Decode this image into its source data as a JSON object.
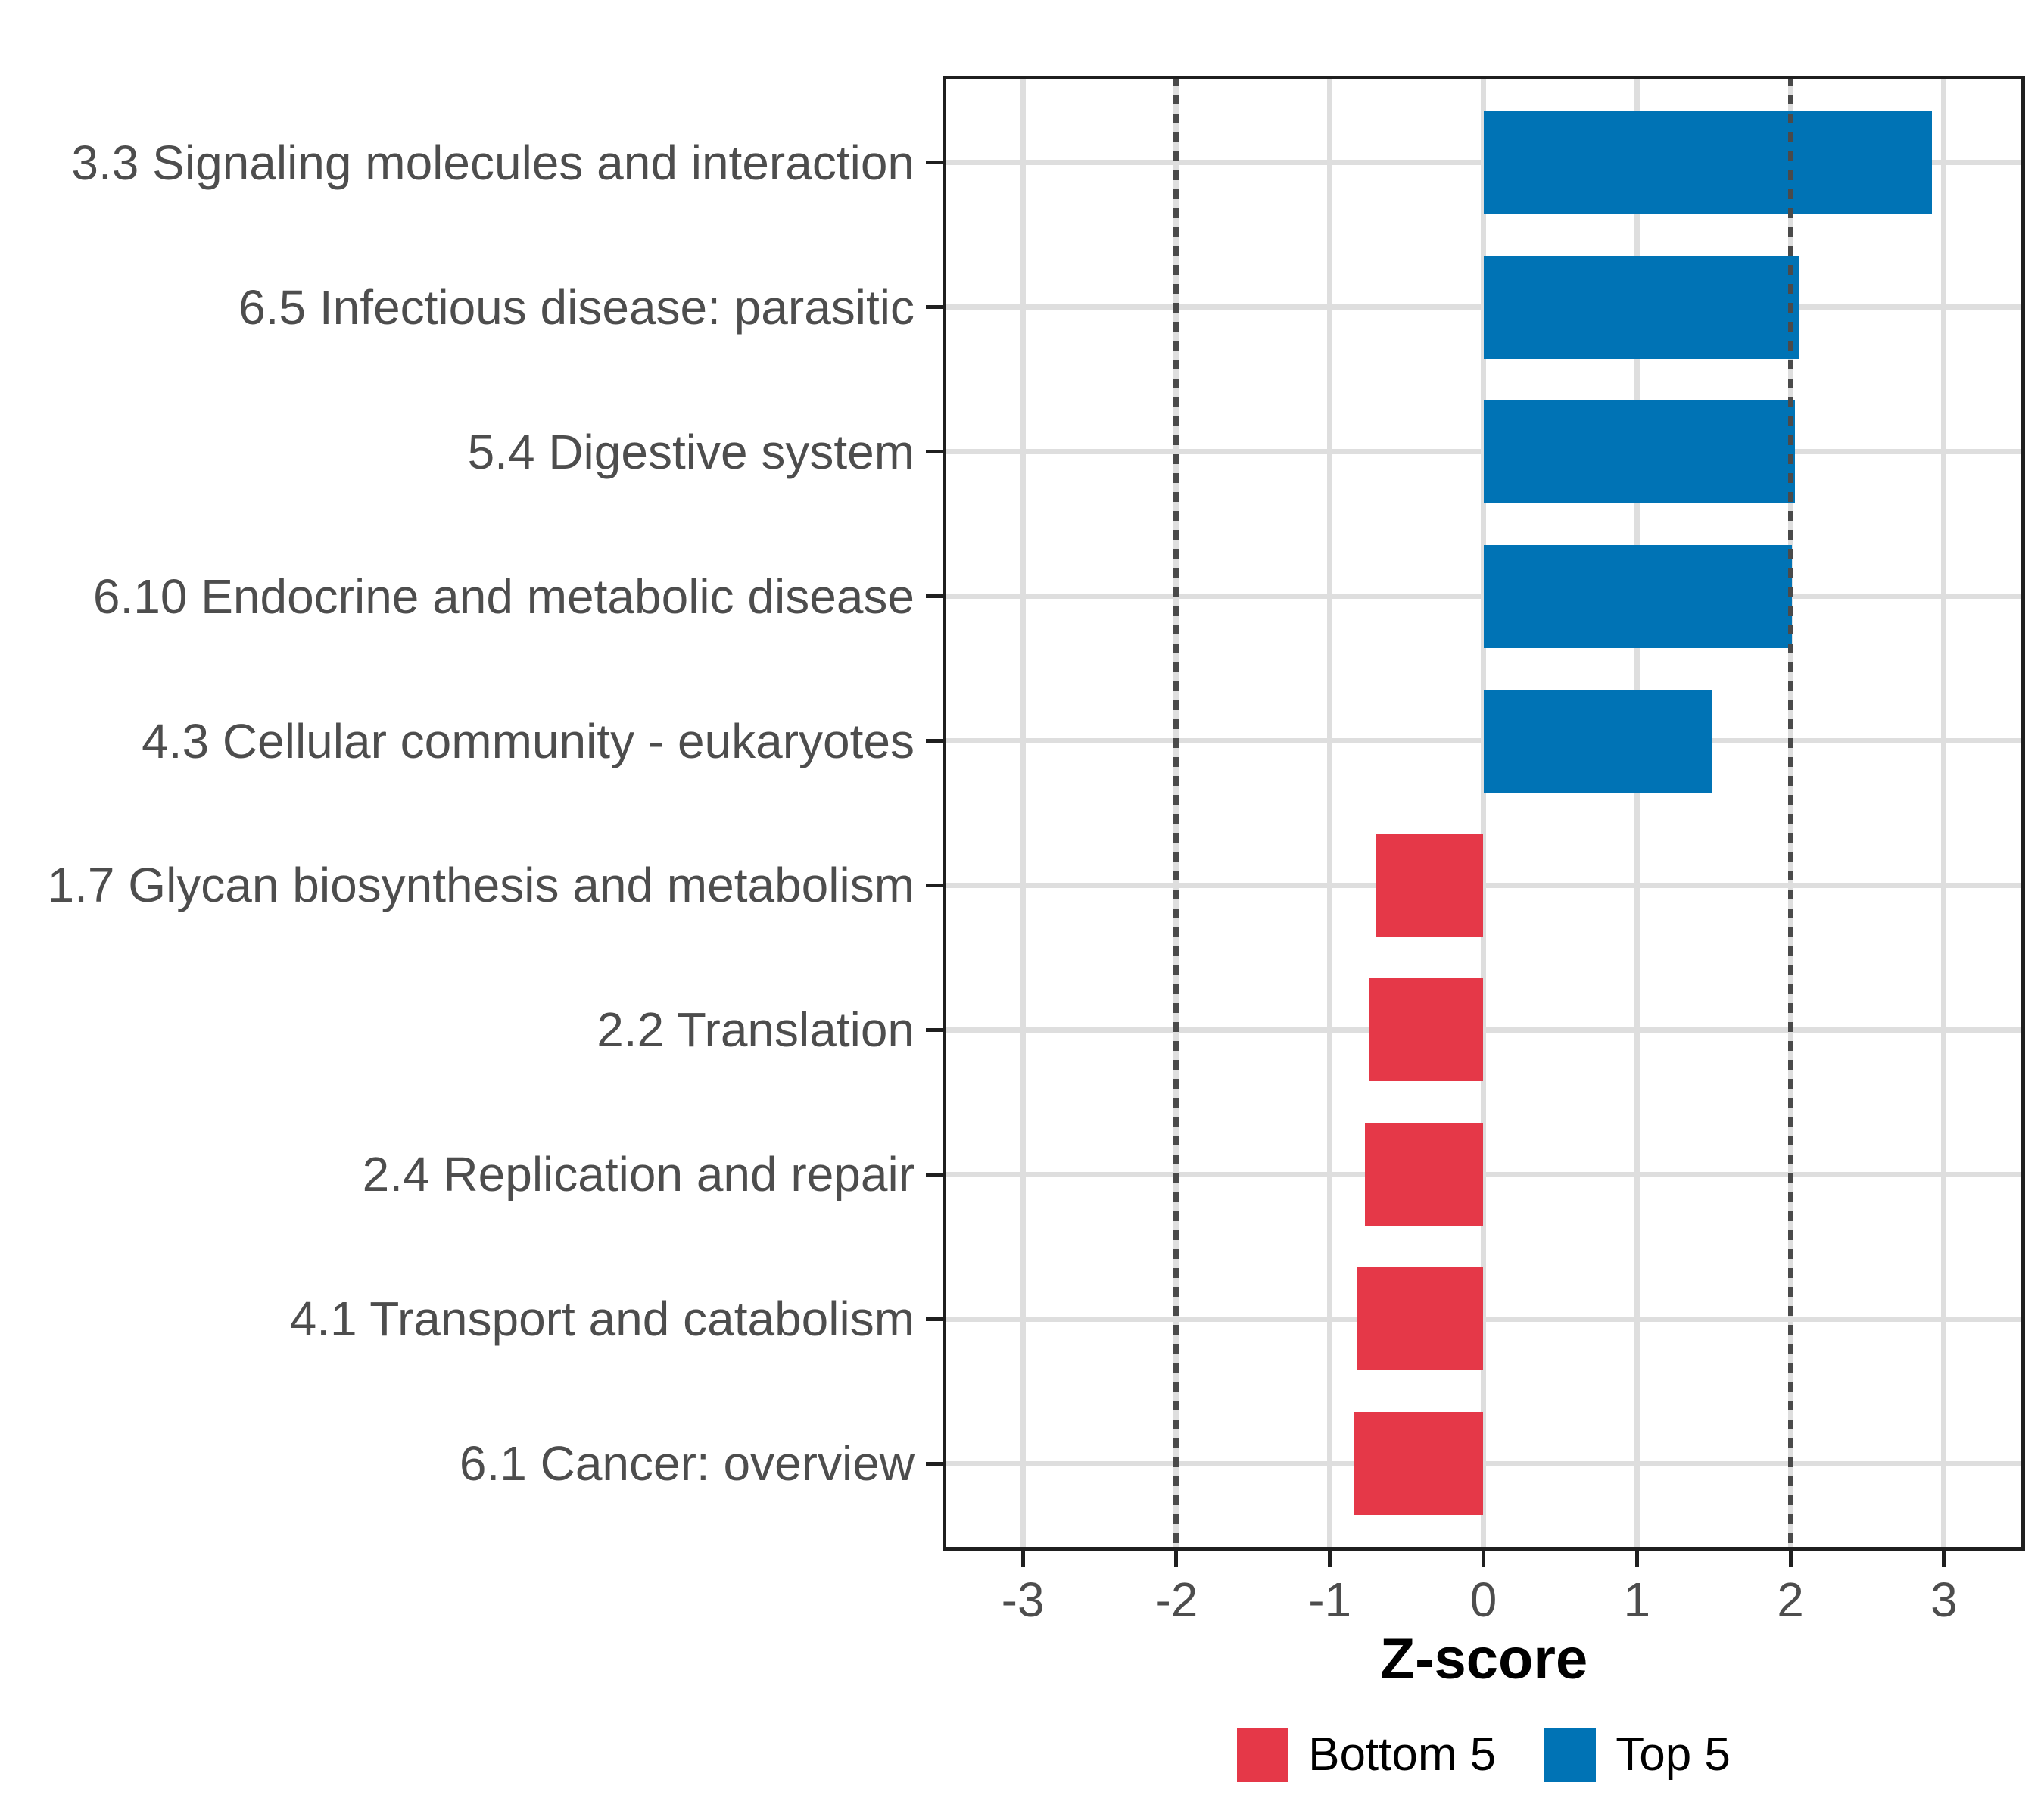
{
  "chart_data": {
    "type": "bar",
    "orientation": "horizontal",
    "title": "",
    "xlabel": "Z-score",
    "ylabel": "",
    "categories": [
      "3.3 Signaling molecules and interaction",
      "6.5 Infectious disease: parasitic",
      "5.4 Digestive system",
      "6.10 Endocrine and metabolic disease",
      "4.3 Cellular community - eukaryotes",
      "1.7 Glycan biosynthesis and metabolism",
      "2.2 Translation",
      "2.4 Replication and repair",
      "4.1 Transport and catabolism",
      "6.1 Cancer: overview"
    ],
    "values": [
      2.92,
      2.06,
      2.03,
      2.01,
      1.49,
      -0.7,
      -0.74,
      -0.77,
      -0.82,
      -0.84
    ],
    "groups": [
      "Top 5",
      "Top 5",
      "Top 5",
      "Top 5",
      "Top 5",
      "Bottom 5",
      "Bottom 5",
      "Bottom 5",
      "Bottom 5",
      "Bottom 5"
    ],
    "series": [
      {
        "name": "Bottom 5",
        "color": "#e53848"
      },
      {
        "name": "Top 5",
        "color": "#0073b5"
      }
    ],
    "xticks": [
      -3,
      -2,
      -1,
      0,
      1,
      2,
      3
    ],
    "xtick_labels": [
      "-3",
      "-2",
      "-1",
      "0",
      "1",
      "2",
      "3"
    ],
    "xlim": [
      -3.52,
      3.53
    ],
    "reference_lines": [
      -2,
      2
    ],
    "grid": "major vertical gridlines at integers, horizontal gridline at each category",
    "legend_position": "bottom-center"
  },
  "axis": {
    "x_title": "Z-score"
  },
  "legend": {
    "items": [
      {
        "label": "Bottom 5",
        "color": "#e53848"
      },
      {
        "label": "Top 5",
        "color": "#0073b5"
      }
    ]
  },
  "colors": {
    "bar_positive": "#0073b5",
    "bar_negative": "#e53848",
    "gridline": "#dedede",
    "reference_line": "#4a4a4a",
    "panel_border": "#1f1f1f",
    "axis_text": "#4d4d4d",
    "axis_title_text": "#000000",
    "background": "#ffffff"
  }
}
